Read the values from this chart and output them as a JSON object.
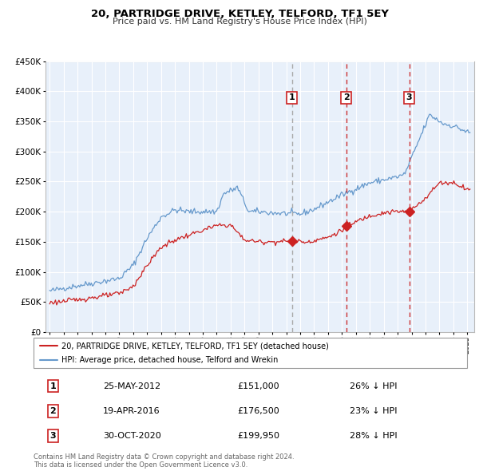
{
  "title": "20, PARTRIDGE DRIVE, KETLEY, TELFORD, TF1 5EY",
  "subtitle": "Price paid vs. HM Land Registry's House Price Index (HPI)",
  "legend_line1": "20, PARTRIDGE DRIVE, KETLEY, TELFORD, TF1 5EY (detached house)",
  "legend_line2": "HPI: Average price, detached house, Telford and Wrekin",
  "footer1": "Contains HM Land Registry data © Crown copyright and database right 2024.",
  "footer2": "This data is licensed under the Open Government Licence v3.0.",
  "transactions": [
    {
      "num": 1,
      "date": "25-MAY-2012",
      "price": "£151,000",
      "pct": "26% ↓ HPI",
      "vline_x": 2012.4,
      "marker_y": 151000
    },
    {
      "num": 2,
      "date": "19-APR-2016",
      "price": "£176,500",
      "pct": "23% ↓ HPI",
      "vline_x": 2016.3,
      "marker_y": 176500
    },
    {
      "num": 3,
      "date": "30-OCT-2020",
      "price": "£199,950",
      "pct": "28% ↓ HPI",
      "vline_x": 2020.83,
      "marker_y": 199950
    }
  ],
  "ylim": [
    0,
    450000
  ],
  "yticks": [
    0,
    50000,
    100000,
    150000,
    200000,
    250000,
    300000,
    350000,
    400000,
    450000
  ],
  "xlim_start": 1994.7,
  "xlim_end": 2025.5,
  "plot_bg": "#e8f0fa",
  "shaded_bg": "#dce9f8",
  "red_color": "#cc2222",
  "blue_color": "#6699cc",
  "grid_color": "#ffffff",
  "vline_color_1": "#aaaaaa",
  "vline_color_23": "#cc3333",
  "label_box_color": "#cc2222"
}
